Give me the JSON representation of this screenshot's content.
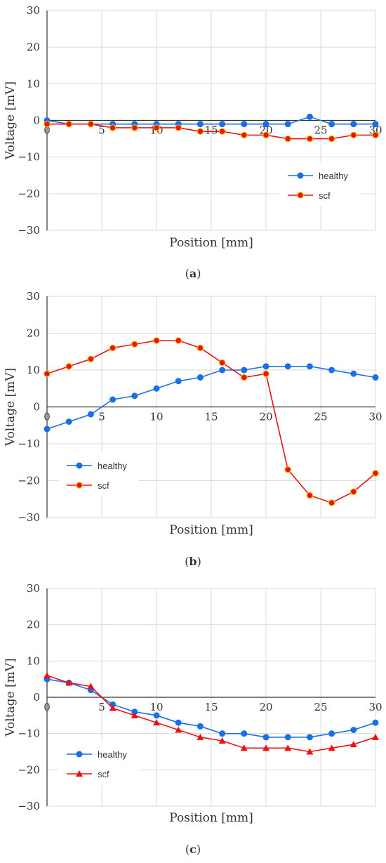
{
  "chart_data": [
    {
      "type": "line",
      "caption": "a",
      "xlabel": "Position [mm]",
      "ylabel": "Voltage [mV]",
      "xlim": [
        0,
        30
      ],
      "ylim": [
        -30,
        30
      ],
      "xticks": [
        0,
        5,
        10,
        15,
        20,
        25,
        30
      ],
      "yticks": [
        -30,
        -20,
        -10,
        0,
        10,
        20,
        30
      ],
      "grid": true,
      "legend_position": "bottom-right",
      "x": [
        0,
        2,
        4,
        6,
        8,
        10,
        12,
        14,
        16,
        18,
        20,
        22,
        24,
        26,
        28,
        30
      ],
      "series": [
        {
          "name": "healthy",
          "color": "#1a6ee8",
          "marker": "circle",
          "values": [
            0,
            -1,
            -1,
            -1,
            -1,
            -1,
            -1,
            -1,
            -1,
            -1,
            -1,
            -1,
            1,
            -1,
            -1,
            -1
          ]
        },
        {
          "name": "scf",
          "color": "#ee1111",
          "marker": "circle",
          "values": [
            -1,
            -1,
            -1,
            -2,
            -2,
            -2,
            -2,
            -3,
            -3,
            -4,
            -4,
            -5,
            -5,
            -5,
            -4,
            -4
          ]
        }
      ]
    },
    {
      "type": "line",
      "caption": "b",
      "xlabel": "Position [mm]",
      "ylabel": "Voltage [mV]",
      "xlim": [
        0,
        30
      ],
      "ylim": [
        -30,
        30
      ],
      "xticks": [
        0,
        5,
        10,
        15,
        20,
        25,
        30
      ],
      "yticks": [
        -30,
        -20,
        -10,
        0,
        10,
        20,
        30
      ],
      "grid": true,
      "legend_position": "bottom-left",
      "x": [
        0,
        2,
        4,
        6,
        8,
        10,
        12,
        14,
        16,
        18,
        20,
        22,
        24,
        26,
        28,
        30
      ],
      "series": [
        {
          "name": "healthy",
          "color": "#1a6ee8",
          "marker": "circle",
          "values": [
            -6,
            -4,
            -2,
            2,
            3,
            5,
            7,
            8,
            10,
            10,
            11,
            11,
            11,
            10,
            9,
            8
          ]
        },
        {
          "name": "scf",
          "color": "#ee1111",
          "marker": "circle",
          "values": [
            9,
            11,
            13,
            16,
            17,
            18,
            18,
            16,
            12,
            8,
            9,
            -17,
            -24,
            -26,
            -23,
            -18
          ]
        }
      ]
    },
    {
      "type": "line",
      "caption": "c",
      "xlabel": "Position [mm]",
      "ylabel": "Voltage [mV]",
      "xlim": [
        0,
        30
      ],
      "ylim": [
        -30,
        30
      ],
      "xticks": [
        0,
        5,
        10,
        15,
        20,
        25,
        30
      ],
      "yticks": [
        -30,
        -20,
        -10,
        0,
        10,
        20,
        30
      ],
      "grid": true,
      "legend_position": "bottom-left",
      "x": [
        0,
        2,
        4,
        6,
        8,
        10,
        12,
        14,
        16,
        18,
        20,
        22,
        24,
        26,
        28,
        30
      ],
      "series": [
        {
          "name": "healthy",
          "color": "#1a6ee8",
          "marker": "circle",
          "values": [
            5,
            4,
            2,
            -2,
            -4,
            -5,
            -7,
            -8,
            -10,
            -10,
            -11,
            -11,
            -11,
            -10,
            -9,
            -7
          ]
        },
        {
          "name": "scf",
          "color": "#ee1111",
          "marker": "triangle",
          "values": [
            6,
            4,
            3,
            -3,
            -5,
            -7,
            -9,
            -11,
            -12,
            -14,
            -14,
            -14,
            -15,
            -14,
            -13,
            -11
          ]
        }
      ]
    }
  ]
}
